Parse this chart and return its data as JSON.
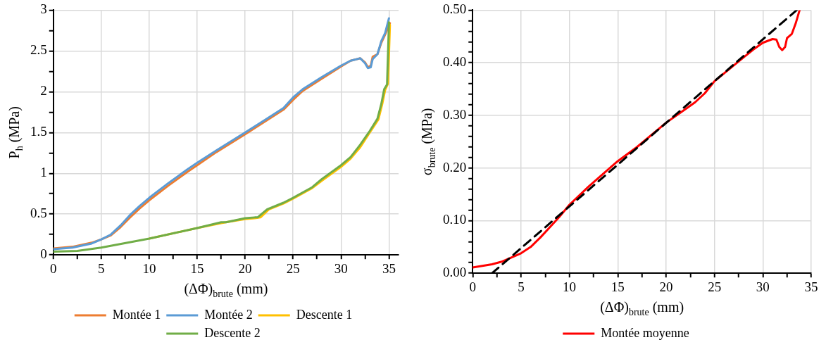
{
  "chart_data": [
    {
      "type": "line",
      "xlabel": "(ΔΦ)$_{brute}$ (mm)",
      "ylabel": "P$_{h}$ (MPa)",
      "xlim": [
        0,
        36
      ],
      "ylim": [
        0,
        3
      ],
      "xticks": [
        0,
        {
          "value": 2.5,
          "label": null
        },
        5,
        {
          "value": 7.5,
          "label": null
        },
        10,
        {
          "value": 12.5,
          "label": null
        },
        15,
        {
          "value": 17.5,
          "label": null
        },
        20,
        {
          "value": 22.5,
          "label": null
        },
        25,
        {
          "value": 27.5,
          "label": null
        },
        30,
        {
          "value": 32.5,
          "label": null
        },
        35
      ],
      "yticks": [
        0,
        {
          "value": 0.25,
          "label": null
        },
        0.5,
        {
          "value": 0.75,
          "label": null
        },
        1,
        {
          "value": 1.25,
          "label": null
        },
        1.5,
        {
          "value": 1.75,
          "label": null
        },
        2,
        {
          "value": 2.25,
          "label": null
        },
        2.5,
        {
          "value": 2.75,
          "label": null
        },
        3
      ],
      "grid": true,
      "legend": "bottom",
      "marker": "none",
      "line_style": "solid",
      "series": [
        {
          "name": "Montée 1",
          "color": "#ed7d31",
          "x": [
            0,
            2,
            4,
            5,
            6,
            7,
            8,
            9,
            10,
            12,
            14,
            15,
            17,
            20,
            22,
            24,
            25,
            26,
            28,
            30,
            31,
            32,
            32.5,
            32.8,
            33.1,
            33.3,
            33.8,
            34.2,
            34.6,
            35.1
          ],
          "values": [
            0.08,
            0.1,
            0.15,
            0.19,
            0.24,
            0.34,
            0.46,
            0.57,
            0.67,
            0.85,
            1.02,
            1.1,
            1.26,
            1.48,
            1.63,
            1.78,
            1.9,
            2.01,
            2.16,
            2.31,
            2.38,
            2.41,
            2.36,
            2.3,
            2.32,
            2.43,
            2.46,
            2.6,
            2.7,
            2.84
          ]
        },
        {
          "name": "Montée 2",
          "color": "#5b9bd5",
          "x": [
            0,
            2,
            4,
            5,
            6,
            7,
            8,
            9,
            10,
            12,
            14,
            15,
            17,
            20,
            22,
            24,
            25,
            26,
            28,
            30,
            31,
            32,
            32.5,
            32.8,
            33.1,
            33.3,
            33.8,
            34.2,
            34.6,
            35
          ],
          "values": [
            0.07,
            0.09,
            0.14,
            0.19,
            0.25,
            0.36,
            0.49,
            0.6,
            0.7,
            0.88,
            1.05,
            1.13,
            1.28,
            1.5,
            1.65,
            1.8,
            1.93,
            2.03,
            2.18,
            2.32,
            2.38,
            2.41,
            2.35,
            2.29,
            2.3,
            2.4,
            2.46,
            2.62,
            2.72,
            2.9
          ]
        },
        {
          "name": "Descente 1",
          "color": "#ffc000",
          "x": [
            10,
            15,
            17.5,
            18,
            20,
            21,
            21.6,
            22.5,
            24,
            25,
            27,
            28,
            30,
            31,
            32,
            33,
            33.9,
            34.3,
            34.6,
            34.9,
            35.1
          ],
          "values": [
            0.2,
            0.33,
            0.39,
            0.4,
            0.44,
            0.45,
            0.46,
            0.56,
            0.63,
            0.69,
            0.82,
            0.91,
            1.08,
            1.18,
            1.32,
            1.5,
            1.66,
            1.85,
            2.02,
            2.1,
            2.82
          ]
        },
        {
          "name": "Descente 2",
          "color": "#70ad47",
          "x": [
            0,
            2.5,
            5,
            10,
            15,
            17.5,
            18,
            20,
            21,
            21.3,
            22.3,
            24,
            25,
            27,
            28,
            30,
            31,
            32,
            33,
            33.8,
            34.2,
            34.5,
            34.8,
            35
          ],
          "values": [
            0.04,
            0.05,
            0.09,
            0.2,
            0.33,
            0.4,
            0.4,
            0.45,
            0.46,
            0.46,
            0.56,
            0.64,
            0.7,
            0.83,
            0.93,
            1.1,
            1.2,
            1.35,
            1.52,
            1.67,
            1.85,
            2.03,
            2.09,
            2.85
          ]
        }
      ]
    },
    {
      "type": "line",
      "xlabel": "(ΔΦ)$_{brute}$ (mm)",
      "ylabel": "σ$_{brute}$ (MPa)",
      "xlim": [
        0,
        35
      ],
      "ylim": [
        0,
        0.5
      ],
      "xticks": [
        0,
        {
          "value": 2.5,
          "label": null
        },
        5,
        {
          "value": 7.5,
          "label": null
        },
        10,
        {
          "value": 12.5,
          "label": null
        },
        15,
        {
          "value": 17.5,
          "label": null
        },
        20,
        {
          "value": 22.5,
          "label": null
        },
        25,
        {
          "value": 27.5,
          "label": null
        },
        30,
        {
          "value": 32.5,
          "label": null
        },
        35
      ],
      "yticks": [
        {
          "value": 0,
          "label": "0.00"
        },
        {
          "value": 0.02,
          "label": null
        },
        {
          "value": 0.04,
          "label": null
        },
        {
          "value": 0.06,
          "label": null
        },
        {
          "value": 0.08,
          "label": null
        },
        {
          "value": 0.1,
          "label": "0.10"
        },
        {
          "value": 0.12,
          "label": null
        },
        {
          "value": 0.14,
          "label": null
        },
        {
          "value": 0.16,
          "label": null
        },
        {
          "value": 0.18,
          "label": null
        },
        {
          "value": 0.2,
          "label": "0.20"
        },
        {
          "value": 0.22,
          "label": null
        },
        {
          "value": 0.24,
          "label": null
        },
        {
          "value": 0.26,
          "label": null
        },
        {
          "value": 0.28,
          "label": null
        },
        {
          "value": 0.3,
          "label": "0.30"
        },
        {
          "value": 0.32,
          "label": null
        },
        {
          "value": 0.34,
          "label": null
        },
        {
          "value": 0.36,
          "label": null
        },
        {
          "value": 0.38,
          "label": null
        },
        {
          "value": 0.4,
          "label": "0.40"
        },
        {
          "value": 0.42,
          "label": null
        },
        {
          "value": 0.44,
          "label": null
        },
        {
          "value": 0.46,
          "label": null
        },
        {
          "value": 0.48,
          "label": null
        },
        {
          "value": 0.5,
          "label": "0.50"
        }
      ],
      "grid": true,
      "legend": "bottom",
      "marker": "none",
      "line_style": "solid",
      "series": [
        {
          "name": "Montée moyenne",
          "color": "#ff0000",
          "x": [
            0,
            2,
            3,
            4,
            5,
            6,
            7,
            8,
            9,
            10,
            12,
            14,
            15,
            17,
            20,
            22,
            23,
            24,
            25,
            27,
            28,
            29,
            30,
            31,
            31.4,
            31.7,
            32,
            32.3,
            32.5,
            33,
            33.4,
            33.8
          ],
          "values": [
            0.011,
            0.017,
            0.022,
            0.03,
            0.038,
            0.05,
            0.068,
            0.088,
            0.108,
            0.13,
            0.165,
            0.197,
            0.213,
            0.24,
            0.286,
            0.312,
            0.325,
            0.342,
            0.365,
            0.395,
            0.41,
            0.425,
            0.438,
            0.445,
            0.444,
            0.43,
            0.424,
            0.43,
            0.447,
            0.455,
            0.475,
            0.5
          ]
        },
        {
          "color": "#000000",
          "line_style": "dashed",
          "x": [
            2,
            33.5
          ],
          "values": [
            0,
            0.5
          ]
        }
      ]
    }
  ]
}
